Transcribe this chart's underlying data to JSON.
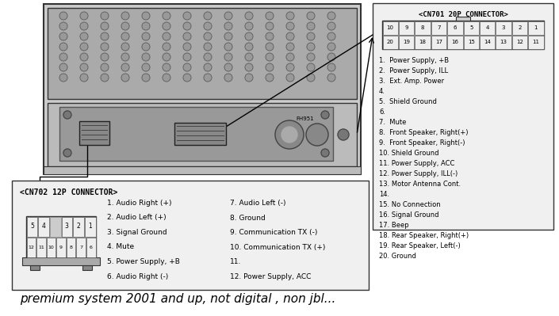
{
  "bg_color": "#ffffff",
  "footer_text": "premium system 2001 and up, not digital , non jbl...",
  "cn701_title": "<CN701 20P CONNECTOR>",
  "cn701_pins_top": [
    "10",
    "9",
    "8",
    "7",
    "6",
    "5",
    "4",
    "3",
    "2",
    "1"
  ],
  "cn701_pins_bot": [
    "20",
    "19",
    "18",
    "17",
    "16",
    "15",
    "14",
    "13",
    "12",
    "11"
  ],
  "cn701_items": [
    "1.  Power Supply, +B",
    "2.  Power Supply, ILL",
    "3.  Ext. Amp. Power",
    "4.",
    "5.  Shield Ground",
    "6.",
    "7.  Mute",
    "8.  Front Speaker, Right(+)",
    "9.  Front Speaker, Right(-)",
    "10. Shield Ground",
    "11. Power Supply, ACC",
    "12. Power Supply, ILL(-)",
    "13. Motor Antenna Cont.",
    "14.",
    "15. No Connection",
    "16. Signal Ground",
    "17. Beep",
    "18. Rear Speaker, Right(+)",
    "19. Rear Speaker, Left(-)",
    "20. Ground"
  ],
  "cn702_title": "<CN702 12P CONNECTOR>",
  "cn702_pins_top": [
    "5",
    "4",
    "",
    "3",
    "2",
    "1"
  ],
  "cn702_pins_bot": [
    "12",
    "11",
    "10",
    "9",
    "8",
    "7",
    "6"
  ],
  "cn702_left": [
    "1. Audio Right (+)",
    "2. Audio Left (+)",
    "3. Signal Ground",
    "4. Mute",
    "5. Power Supply, +B",
    "6. Audio Right (-)"
  ],
  "cn702_right": [
    "7. Audio Left (-)",
    "8. Ground",
    "9. Communication TX (-)",
    "10. Communication TX (+)",
    "11.",
    "12. Power Supply, ACC"
  ]
}
